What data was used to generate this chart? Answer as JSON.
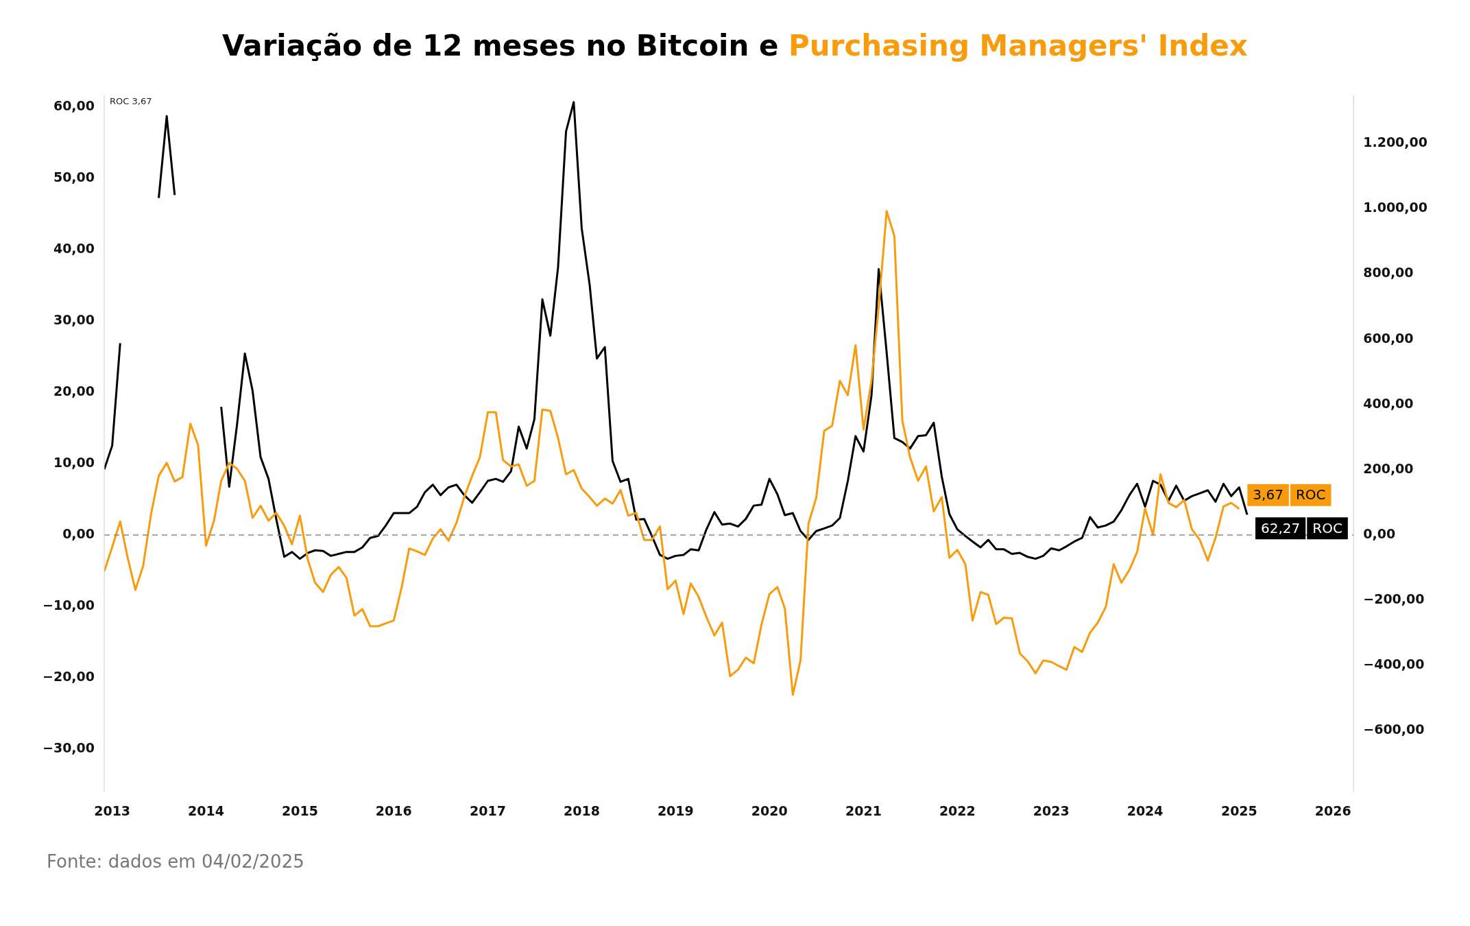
{
  "chart_data": {
    "type": "line",
    "title": "Variação de 12 meses no Bitcoin e",
    "x": [
      "2012-12",
      "2013-01",
      "2013-02",
      "2013-03",
      "2013-04",
      "2013-05",
      "2013-06",
      "2013-07",
      "2013-08",
      "2013-09",
      "2013-10",
      "2013-11",
      "2013-12",
      "2014-01",
      "2014-02",
      "2014-03",
      "2014-04",
      "2014-05",
      "2014-06",
      "2014-07",
      "2014-08",
      "2014-09",
      "2014-10",
      "2014-11",
      "2014-12",
      "2015-01",
      "2015-02",
      "2015-03",
      "2015-04",
      "2015-05",
      "2015-06",
      "2015-07",
      "2015-08",
      "2015-09",
      "2015-10",
      "2015-11",
      "2015-12",
      "2016-01",
      "2016-02",
      "2016-03",
      "2016-04",
      "2016-05",
      "2016-06",
      "2016-07",
      "2016-08",
      "2016-09",
      "2016-10",
      "2016-11",
      "2016-12",
      "2017-01",
      "2017-02",
      "2017-03",
      "2017-04",
      "2017-05",
      "2017-06",
      "2017-07",
      "2017-08",
      "2017-09",
      "2017-10",
      "2017-11",
      "2017-12",
      "2018-01",
      "2018-02",
      "2018-03",
      "2018-04",
      "2018-05",
      "2018-06",
      "2018-07",
      "2018-08",
      "2018-09",
      "2018-10",
      "2018-11",
      "2018-12",
      "2019-01",
      "2019-02",
      "2019-03",
      "2019-04",
      "2019-05",
      "2019-06",
      "2019-07",
      "2019-08",
      "2019-09",
      "2019-10",
      "2019-11",
      "2019-12",
      "2020-01",
      "2020-02",
      "2020-03",
      "2020-04",
      "2020-05",
      "2020-06",
      "2020-07",
      "2020-08",
      "2020-09",
      "2020-10",
      "2020-11",
      "2020-12",
      "2021-01",
      "2021-02",
      "2021-03",
      "2021-04",
      "2021-05",
      "2021-06",
      "2021-07",
      "2021-08",
      "2021-09",
      "2021-10",
      "2021-11",
      "2021-12",
      "2022-01",
      "2022-02",
      "2022-03",
      "2022-04",
      "2022-05",
      "2022-06",
      "2022-07",
      "2022-08",
      "2022-09",
      "2022-10",
      "2022-11",
      "2022-12",
      "2023-01",
      "2023-02",
      "2023-03",
      "2023-04",
      "2023-05",
      "2023-06",
      "2023-07",
      "2023-08",
      "2023-09",
      "2023-10",
      "2023-11",
      "2023-12",
      "2024-01",
      "2024-02",
      "2024-03",
      "2024-04",
      "2024-05",
      "2024-06",
      "2024-07",
      "2024-08",
      "2024-09",
      "2024-10",
      "2024-11",
      "2024-12",
      "2025-01",
      "2025-02"
    ],
    "series": [
      {
        "name": "Purchasing Managers' Index",
        "color": "#f89c0e",
        "values": [
          -5.1,
          -1.7,
          1.9,
          -3.0,
          -7.7,
          -4.4,
          2.9,
          8.3,
          10.1,
          7.5,
          8.1,
          15.6,
          12.6,
          -1.5,
          2.0,
          7.6,
          10.1,
          9.3,
          7.6,
          2.4,
          4.1,
          2.0,
          3.1,
          1.3,
          -1.3,
          2.7,
          -3.5,
          -6.7,
          -8.0,
          -5.6,
          -4.5,
          -6.0,
          -11.3,
          -10.4,
          -12.8,
          -12.8,
          -12.4,
          -12.0,
          -7.3,
          -1.9,
          -2.3,
          -2.8,
          -0.5,
          0.8,
          -0.8,
          1.7,
          5.3,
          8.3,
          10.9,
          17.2,
          17.2,
          10.5,
          9.6,
          9.9,
          6.9,
          7.6,
          17.6,
          17.4,
          13.6,
          8.5,
          9.1,
          6.5,
          5.3,
          4.1,
          5.1,
          4.4,
          6.3,
          2.7,
          3.1,
          -0.7,
          -0.7,
          1.2,
          -7.6,
          -6.4,
          -11.1,
          -6.8,
          -8.7,
          -11.5,
          -14.1,
          -12.3,
          -19.8,
          -18.9,
          -17.2,
          -18.0,
          -12.6,
          -8.3,
          -7.3,
          -10.3,
          -22.4,
          -17.6,
          1.6,
          5.2,
          14.6,
          15.3,
          21.6,
          19.6,
          26.6,
          14.8,
          21.6,
          32.0,
          45.4,
          41.9,
          16.0,
          10.9,
          7.6,
          9.6,
          3.3,
          5.3,
          -3.2,
          -2.1,
          -4.1,
          -12.0,
          -8.0,
          -8.4,
          -12.5,
          -11.6,
          -11.7,
          -16.6,
          -17.7,
          -19.4,
          -17.6,
          -17.8,
          -18.4,
          -18.9,
          -15.7,
          -16.4,
          -13.7,
          -12.3,
          -10.1,
          -4.1,
          -6.7,
          -4.9,
          -2.4,
          3.7,
          0.0,
          8.5,
          4.5,
          3.9,
          4.9,
          0.8,
          -0.7,
          -3.6,
          -0.4,
          4.0,
          4.5,
          3.67,
          null
        ],
        "value_labels": [
          null,
          null,
          null,
          null,
          null,
          null,
          null,
          null,
          null,
          null,
          null,
          null,
          null,
          null,
          null,
          null,
          null,
          null,
          null,
          null,
          null,
          null,
          null,
          null,
          null,
          null,
          null,
          null,
          null,
          null,
          null,
          null,
          null,
          null,
          null,
          null,
          null,
          null,
          null,
          null,
          null,
          null,
          null,
          null,
          null,
          null,
          null,
          null,
          null,
          null,
          null,
          null,
          null,
          null,
          null,
          null,
          null,
          null,
          null,
          null,
          null,
          null,
          null,
          null,
          null,
          null,
          null,
          null,
          null,
          null,
          null,
          null,
          null,
          null,
          null,
          null,
          null,
          null,
          null,
          null,
          null,
          null,
          null,
          null,
          null,
          null,
          null,
          null,
          null,
          null,
          null,
          null,
          null,
          null,
          null,
          null,
          null,
          null,
          null,
          null,
          null,
          null,
          null,
          null,
          null,
          null,
          null,
          null,
          null,
          null,
          null,
          null,
          null,
          null,
          null,
          null,
          null,
          null,
          null,
          null,
          null,
          null,
          null,
          null,
          null,
          null,
          null,
          null,
          null,
          null,
          null,
          null,
          null,
          null,
          null,
          null,
          null,
          null,
          null,
          null,
          null,
          null,
          null,
          null,
          null,
          "3,67",
          null
        ]
      },
      {
        "color": "#000000",
        "axis": "y2",
        "values": [
          201,
          274,
          588,
          null,
          null,
          null,
          null,
          1033,
          1284,
          1042,
          null,
          null,
          null,
          null,
          null,
          393,
          148,
          335,
          556,
          442,
          239,
          172,
          49,
          -67,
          -52,
          -73,
          -55,
          -47,
          -49,
          -64,
          -58,
          -52,
          -52,
          -38,
          -9,
          -3,
          29,
          67,
          67,
          67,
          87,
          131,
          154,
          122,
          146,
          154,
          122,
          99,
          131,
          166,
          172,
          163,
          195,
          332,
          265,
          355,
          722,
          611,
          821,
          1237,
          1327,
          940,
          766,
          541,
          576,
          227,
          163,
          172,
          47,
          49,
          -3,
          -61,
          -73,
          -64,
          -61,
          -44,
          -47,
          17,
          70,
          32,
          35,
          26,
          49,
          90,
          93,
          172,
          125,
          61,
          67,
          12,
          -15,
          12,
          20,
          29,
          52,
          166,
          303,
          256,
          428,
          815,
          559,
          297,
          285,
          265,
          303,
          306,
          344,
          180,
          64,
          17,
          -3,
          -20,
          -38,
          -15,
          -44,
          -44,
          -58,
          -55,
          -67,
          -73,
          -64,
          -41,
          -47,
          -35,
          -20,
          -9,
          55,
          23,
          29,
          41,
          76,
          122,
          157,
          87,
          166,
          154,
          105,
          151,
          105,
          119,
          128,
          137,
          102,
          157,
          119,
          146,
          62.27
        ],
        "value_labels": [
          null,
          null,
          null,
          null,
          null,
          null,
          null,
          null,
          null,
          null,
          null,
          null,
          null,
          null,
          null,
          null,
          null,
          null,
          null,
          null,
          null,
          null,
          null,
          null,
          null,
          null,
          null,
          null,
          null,
          null,
          null,
          null,
          null,
          null,
          null,
          null,
          null,
          null,
          null,
          null,
          null,
          null,
          null,
          null,
          null,
          null,
          null,
          null,
          null,
          null,
          null,
          null,
          null,
          null,
          null,
          null,
          null,
          null,
          null,
          null,
          null,
          null,
          null,
          null,
          null,
          null,
          null,
          null,
          null,
          null,
          null,
          null,
          null,
          null,
          null,
          null,
          null,
          null,
          null,
          null,
          null,
          null,
          null,
          null,
          null,
          null,
          null,
          null,
          null,
          null,
          null,
          null,
          null,
          null,
          null,
          null,
          null,
          null,
          null,
          null,
          null,
          null,
          null,
          null,
          null,
          null,
          null,
          null,
          null,
          null,
          null,
          null,
          null,
          null,
          null,
          null,
          null,
          null,
          null,
          null,
          null,
          null,
          null,
          null,
          null,
          null,
          null,
          null,
          null,
          null,
          null,
          null,
          null,
          null,
          null,
          null,
          null,
          null,
          null,
          null,
          null,
          null,
          null,
          null,
          null,
          null,
          "62,27"
        ]
      }
    ],
    "xlim": [
      "2012-12-01",
      "2026-03-22"
    ],
    "xticks": [
      "2013",
      "2014",
      "2015",
      "2016",
      "2017",
      "2018",
      "2019",
      "2020",
      "2021",
      "2022",
      "2023",
      "2024",
      "2025",
      "2026"
    ],
    "ylim": [
      -36,
      61.7
    ],
    "yticks": [
      {
        "value": -30,
        "label": "−30,00"
      },
      {
        "value": -20,
        "label": "−20,00"
      },
      {
        "value": -10,
        "label": "−10,00"
      },
      {
        "value": 0,
        "label": "0,00"
      },
      {
        "value": 10,
        "label": "10,00"
      },
      {
        "value": 20,
        "label": "20,00"
      },
      {
        "value": 30,
        "label": "30,00"
      },
      {
        "value": 40,
        "label": "40,00"
      },
      {
        "value": 50,
        "label": "50,00"
      },
      {
        "value": 60,
        "label": "60,00"
      }
    ],
    "y2lim": [
      -787,
      1349
    ],
    "y2ticks": [
      {
        "value": -600,
        "label": "−600,00"
      },
      {
        "value": -400,
        "label": "−400,00"
      },
      {
        "value": -200,
        "label": "−200,00"
      },
      {
        "value": 0,
        "label": "0,00"
      },
      {
        "value": 200,
        "label": "200,00"
      },
      {
        "value": 400,
        "label": "400,00"
      },
      {
        "value": 600,
        "label": "600,00"
      },
      {
        "value": 800,
        "label": "800,00"
      },
      {
        "value": 1000,
        "label": "1.000,00"
      },
      {
        "value": 1200,
        "label": "1.200,00"
      }
    ],
    "ref_lines": [
      {
        "axis": "y",
        "value": 0,
        "color": "#888888",
        "line_style": "dashed"
      }
    ],
    "annotations": [
      "ROC",
      "ROC",
      "ROC 3,67",
      "Fonte: dados em 04/02/2025"
    ]
  }
}
